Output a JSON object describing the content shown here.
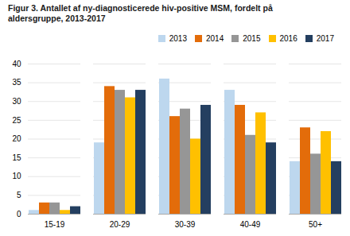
{
  "chart_data": {
    "type": "bar",
    "title": "Figur 3. Antallet af ny-diagnosticerede hiv-positive MSM, fordelt på\naldersgruppe, 2013-2017",
    "categories": [
      "15-19",
      "20-29",
      "30-39",
      "40-49",
      "50+"
    ],
    "series": [
      {
        "name": "2013",
        "color": "#BDD7EE",
        "values": [
          1,
          19,
          36,
          33,
          14
        ]
      },
      {
        "name": "2014",
        "color": "#E36C0A",
        "values": [
          3,
          34,
          26,
          29,
          23
        ]
      },
      {
        "name": "2015",
        "color": "#969696",
        "values": [
          3,
          33,
          28,
          21,
          16
        ]
      },
      {
        "name": "2016",
        "color": "#FFC000",
        "values": [
          1,
          31,
          20,
          27,
          22
        ]
      },
      {
        "name": "2017",
        "color": "#243F60",
        "values": [
          2,
          33,
          29,
          19,
          14
        ]
      }
    ],
    "ylim": [
      0,
      40
    ],
    "yticks": [
      0,
      5,
      10,
      15,
      20,
      25,
      30,
      35,
      40
    ],
    "grid": true,
    "legend": "upper right"
  }
}
